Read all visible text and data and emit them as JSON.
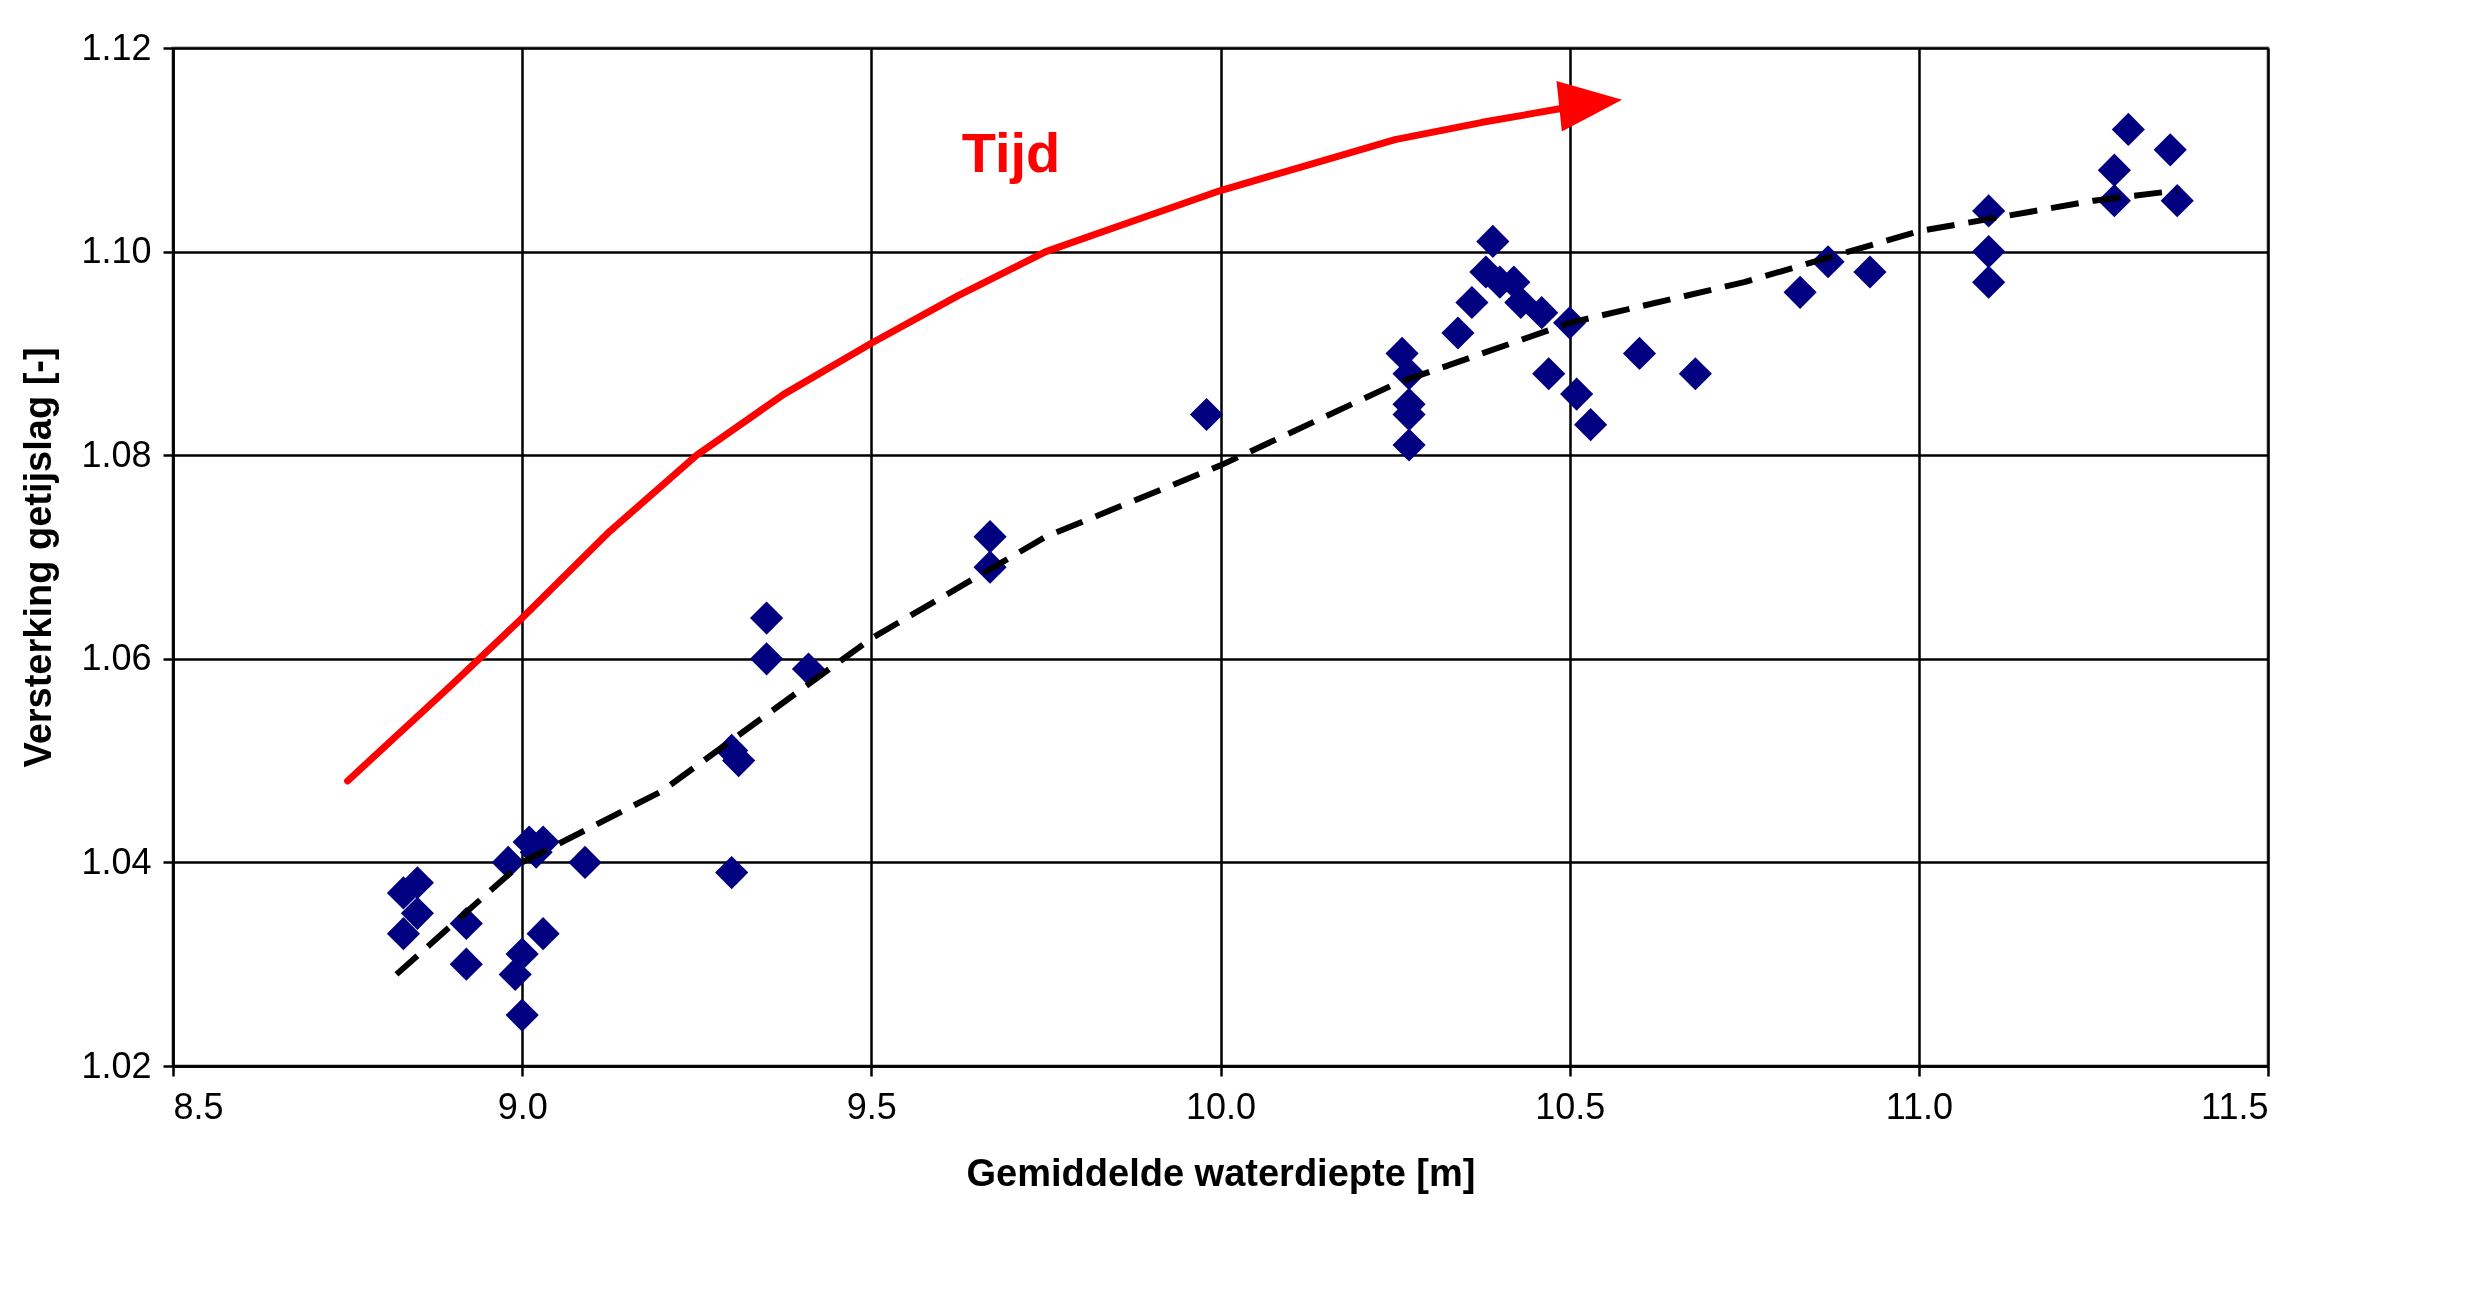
{
  "chart_data": {
    "type": "scatter",
    "xlabel": "Gemiddelde waterdiepte [m]",
    "ylabel": "Versterking getijslag [-]",
    "annotations": [
      "Tijd"
    ],
    "xlim": [
      8.5,
      11.5
    ],
    "xticks": [
      {
        "value": 8.5,
        "label": "8.5"
      },
      {
        "value": 9,
        "label": "9.0"
      },
      {
        "value": 9.5,
        "label": "9.5"
      },
      {
        "value": 10,
        "label": "10.0"
      },
      {
        "value": 10.5,
        "label": "10.5"
      },
      {
        "value": 11,
        "label": "11.0"
      },
      {
        "value": 11.5,
        "label": "11.5"
      }
    ],
    "ylim": [
      1.02,
      1.12
    ],
    "yticks": [
      1.02,
      1.04,
      1.06,
      1.08,
      {
        "value": 1.1,
        "label": "1.10"
      },
      1.12
    ],
    "grid": true,
    "series": [
      {
        "color": "#000080",
        "marker": "diamond",
        "x": [
          8.83,
          8.85,
          8.83,
          8.85,
          8.92,
          8.92,
          8.98,
          9.01,
          9.03,
          9.02,
          8.99,
          9.0,
          9.0,
          9.03,
          9.09,
          9.3,
          9.31,
          9.3,
          9.35,
          9.35,
          9.41,
          9.67,
          9.67,
          9.98,
          10.26,
          10.27,
          10.27,
          10.27,
          10.27,
          10.34,
          10.36,
          10.38,
          10.39,
          10.4,
          10.42,
          10.43,
          10.46,
          10.47,
          10.5,
          10.51,
          10.53,
          10.6,
          10.68,
          10.83,
          10.87,
          10.93,
          11.1,
          11.1,
          11.1,
          11.28,
          11.28,
          11.3,
          11.36,
          11.37
        ],
        "values": [
          1.037,
          1.038,
          1.033,
          1.035,
          1.034,
          1.03,
          1.04,
          1.042,
          1.042,
          1.041,
          1.029,
          1.031,
          1.025,
          1.033,
          1.04,
          1.051,
          1.05,
          1.039,
          1.064,
          1.06,
          1.059,
          1.072,
          1.069,
          1.084,
          1.09,
          1.088,
          1.085,
          1.084,
          1.081,
          1.092,
          1.095,
          1.098,
          1.101,
          1.097,
          1.097,
          1.095,
          1.094,
          1.088,
          1.093,
          1.086,
          1.083,
          1.09,
          1.088,
          1.096,
          1.099,
          1.098,
          1.104,
          1.1,
          1.097,
          1.108,
          1.105,
          1.112,
          1.11,
          1.105
        ]
      },
      {
        "type": "line",
        "color": "#000000",
        "line_style": "dashed",
        "marker": "none",
        "x": [
          8.82,
          9.0,
          9.2,
          9.5,
          9.75,
          10.0,
          10.25,
          10.5,
          10.75,
          11.0,
          11.25,
          11.37
        ],
        "values": [
          1.029,
          1.04,
          1.047,
          1.062,
          1.072,
          1.079,
          1.087,
          1.093,
          1.097,
          1.102,
          1.105,
          1.106
        ]
      }
    ]
  }
}
